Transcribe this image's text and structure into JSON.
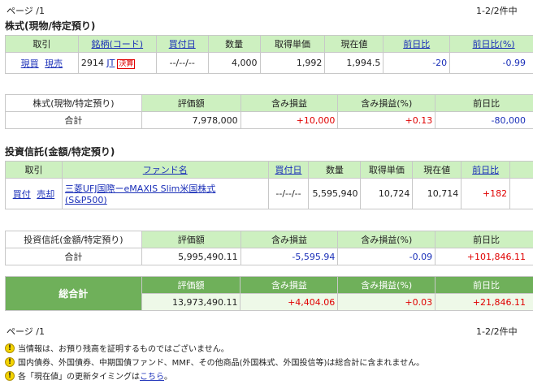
{
  "pager_top": {
    "page": "ページ /1",
    "count": "1-2/2件中"
  },
  "stock": {
    "title": "株式(現物/特定預り)",
    "headers": {
      "trade": "取引",
      "name": "銘柄(コード)",
      "buy_date": "買付日",
      "qty": "数量",
      "acq_price": "取得単価",
      "price": "現在値",
      "change": "前日比",
      "change_pct": "前日比(%)"
    },
    "row": {
      "buy": "現買",
      "sell": "現売",
      "code": "2914",
      "name": "JT",
      "badge": "決算",
      "date": "--/--/--",
      "qty": "4,000",
      "acq_price": "1,992",
      "price": "1,994.5",
      "change": "-20",
      "change_pct": "-0.99"
    },
    "summary": {
      "label": "株式(現物/特定預り)",
      "total_label": "合計",
      "h_value": "評価額",
      "h_pl": "含み損益",
      "h_pl_pct": "含み損益(%)",
      "h_change": "前日比",
      "value": "7,978,000",
      "pl": "+10,000",
      "pl_pct": "+0.13",
      "change": "-80,000"
    }
  },
  "fund": {
    "title": "投資信託(金額/特定預り)",
    "headers": {
      "trade": "取引",
      "name": "ファンド名",
      "buy_date": "買付日",
      "qty": "数量",
      "acq_price": "取得単価",
      "price": "現在値",
      "change": "前日比"
    },
    "row": {
      "buy": "買付",
      "sell": "売却",
      "name_line1": "三菱UFJ国際ーeMAXIS Slim米国株式",
      "name_line2": "(S&P500)",
      "date": "--/--/--",
      "qty": "5,595,940",
      "acq_price": "10,724",
      "price": "10,714",
      "change": "+182"
    },
    "summary": {
      "label": "投資信託(金額/特定預り)",
      "total_label": "合計",
      "h_value": "評価額",
      "h_pl": "含み損益",
      "h_pl_pct": "含み損益(%)",
      "h_change": "前日比",
      "value": "5,995,490.11",
      "pl": "-5,595.94",
      "pl_pct": "-0.09",
      "change": "+101,846.11"
    }
  },
  "grand_total": {
    "label": "総合計",
    "h_value": "評価額",
    "h_pl": "含み損益",
    "h_pl_pct": "含み損益(%)",
    "h_change": "前日比",
    "value": "13,973,490.11",
    "pl": "+4,404.06",
    "pl_pct": "+0.03",
    "change": "+21,846.11"
  },
  "pager_bottom": {
    "page": "ページ /1",
    "count": "1-2/2件中"
  },
  "notes": {
    "n1": "当情報は、お預り残高を証明するものではございません。",
    "n2": "国内債券、外国債券、中期国債ファンド、MMF、その他商品(外国株式、外国投信等)は総合計に含まれません。",
    "n3_prefix": "各「現在値」の更新タイミングは",
    "n3_link": "こちら",
    "n3_suffix": "。"
  }
}
